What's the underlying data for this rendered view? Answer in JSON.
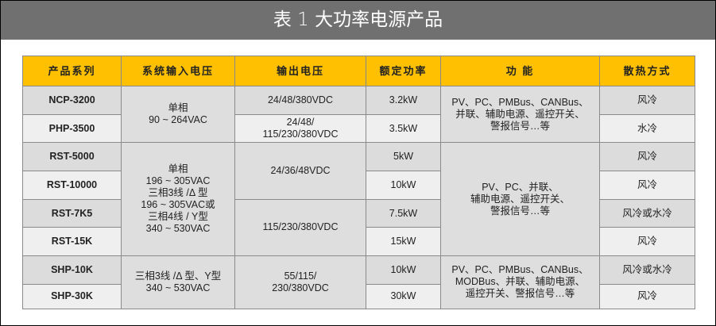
{
  "title": "表 1 大功率电源产品",
  "colors": {
    "header_bg": "#fec000",
    "title_bg": "#707070",
    "row_dark": "#dcdcdc",
    "row_light": "#efefef"
  },
  "table": {
    "headers": [
      "产品系列",
      "系统输入电压",
      "输出电压",
      "额定功率",
      "功 能",
      "散热方式"
    ],
    "series": [
      "NCP-3200",
      "PHP-3500",
      "RST-5000",
      "RST-10000",
      "RST-7K5",
      "RST-15K",
      "SHP-10K",
      "SHP-30K"
    ],
    "input_voltage": [
      "单相\n90 ~ 264VAC",
      "单相\n196 ~ 305VAC\n三相3线 /Δ 型\n196 ~ 305VAC或\n三相4线 / Y型\n340 ~ 530VAC",
      "三相3线 /Δ 型、Y型\n340 ~ 530VAC"
    ],
    "output_voltage": [
      "24/48/380VDC",
      "24/48/\n115/230/380VDC",
      "24/36/48VDC",
      "115/230/380VDC",
      "55/115/\n230/380VDC"
    ],
    "power": [
      "3.2kW",
      "3.5kW",
      "5kW",
      "10kW",
      "7.5kW",
      "15kW",
      "10kW",
      "30kW"
    ],
    "functions": [
      "PV、PC、PMBus、CANBus、\n并联、辅助电源、遥控开关、\n警报信号…等",
      "PV、PC、并联、\n辅助电源、遥控开关、\n警报信号…等",
      "PV、PC、PMBus、CANBus、\nMODBus、并联、辅助电源、\n遥控开关、警报信号…等"
    ],
    "cooling": [
      "风冷",
      "水冷",
      "风冷",
      "风冷",
      "风冷或水冷",
      "风冷",
      "风冷或水冷",
      "风冷"
    ]
  }
}
